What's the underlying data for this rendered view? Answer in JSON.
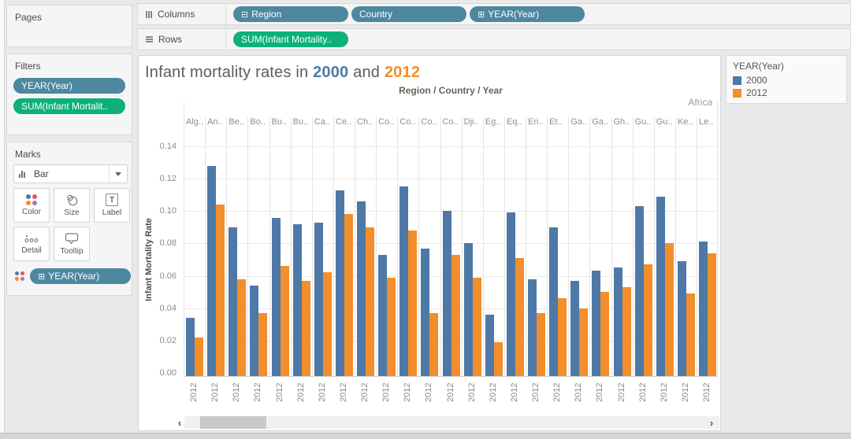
{
  "shelves": {
    "columns": {
      "label": "Columns",
      "pills": [
        {
          "text": "Region",
          "prefix": "⊟",
          "type": "dimension"
        },
        {
          "text": "Country",
          "prefix": "",
          "type": "dimension"
        },
        {
          "text": "YEAR(Year)",
          "prefix": "⊞",
          "type": "dimension"
        }
      ]
    },
    "rows": {
      "label": "Rows",
      "pills": [
        {
          "text": "SUM(Infant Mortality..",
          "prefix": "",
          "type": "measure"
        }
      ]
    }
  },
  "sidebar": {
    "pages": {
      "title": "Pages"
    },
    "filters": {
      "title": "Filters",
      "pills": [
        {
          "text": "YEAR(Year)",
          "type": "dimension"
        },
        {
          "text": "SUM(Infant Mortalit..",
          "type": "measure"
        }
      ]
    },
    "marks": {
      "title": "Marks",
      "mark_type": "Bar",
      "buttons": [
        "Color",
        "Size",
        "Label",
        "Detail",
        "Tooltip"
      ],
      "label_icon_glyph": "T",
      "pill": {
        "text": "YEAR(Year)",
        "prefix": "⊞"
      }
    }
  },
  "chart": {
    "title": {
      "prefix": "Infant mortality rates in ",
      "year_2000": "2000",
      "connector": " and ",
      "year_2012": "2012"
    },
    "column_field_header": "Region / Country / Year",
    "region_label": "Africa",
    "y_axis_title": "Infant Mortality Rate"
  },
  "chart_data": {
    "type": "bar",
    "title": "Infant mortality rates in 2000 and 2012",
    "column_header": "Region / Country / Year",
    "region_label": "Africa",
    "ylabel": "Infant Mortality Rate",
    "ylim": [
      0,
      0.14
    ],
    "yticks": [
      "0.00",
      "0.02",
      "0.04",
      "0.06",
      "0.08",
      "0.10",
      "0.12",
      "0.14"
    ],
    "grid": true,
    "legend_position": "right",
    "x_tick_label": "2012",
    "categories": [
      "Alg..",
      "An..",
      "Be..",
      "Bo..",
      "Bu..",
      "Bu..",
      "Ca..",
      "Ce..",
      "Ch..",
      "Co..",
      "Co..",
      "Co..",
      "Co..",
      "Dji..",
      "Eg..",
      "Eq..",
      "Eri..",
      "Et..",
      "Ga..",
      "Ga..",
      "Gh..",
      "Gu..",
      "Gu..",
      "Ke..",
      "Le.."
    ],
    "series": [
      {
        "name": "2000",
        "color": "#4e79a7",
        "values": [
          0.034,
          0.128,
          0.09,
          0.054,
          0.096,
          0.092,
          0.093,
          0.113,
          0.106,
          0.073,
          0.115,
          0.077,
          0.1,
          0.08,
          0.036,
          0.099,
          0.058,
          0.09,
          0.057,
          0.063,
          0.065,
          0.103,
          0.109,
          0.069,
          0.081
        ]
      },
      {
        "name": "2012",
        "color": "#f28e2b",
        "values": [
          0.022,
          0.104,
          0.058,
          0.037,
          0.066,
          0.057,
          0.062,
          0.098,
          0.09,
          0.059,
          0.088,
          0.037,
          0.073,
          0.059,
          0.019,
          0.071,
          0.037,
          0.046,
          0.04,
          0.05,
          0.053,
          0.067,
          0.08,
          0.049,
          0.074
        ]
      }
    ]
  },
  "legend": {
    "title": "YEAR(Year)",
    "items": [
      {
        "label": "2000",
        "color": "#4e79a7"
      },
      {
        "label": "2012",
        "color": "#f28e2b"
      }
    ]
  },
  "scrollbar": {
    "left_arrow": "‹",
    "right_arrow": "›"
  },
  "colors": {
    "bar_2000": "#4e79a7",
    "bar_2012": "#f28e2b",
    "pill_dimension": "#4d87a0",
    "pill_measure": "#0cb17a",
    "title_year_2000": "#4e79a7",
    "title_year_2012": "#f28e2b"
  }
}
